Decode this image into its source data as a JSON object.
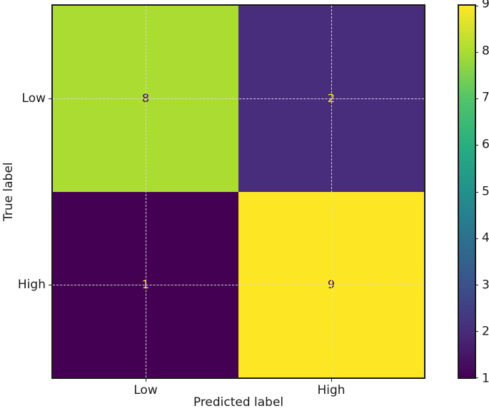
{
  "chart_data": {
    "type": "heatmap",
    "subtype": "confusion-matrix",
    "title": "",
    "xlabel": "Predicted label",
    "ylabel": "True label",
    "x_ticklabels": [
      "Low",
      "High"
    ],
    "y_ticklabels": [
      "Low",
      "High"
    ],
    "matrix": [
      [
        8,
        2
      ],
      [
        1,
        9
      ]
    ],
    "cells": [
      {
        "true_label": "Low",
        "predicted_label": "Low",
        "value": "8",
        "bg": "#aadc32",
        "fg": "#440154"
      },
      {
        "true_label": "Low",
        "predicted_label": "High",
        "value": "2",
        "bg": "#472d7b",
        "fg": "#fde725"
      },
      {
        "true_label": "High",
        "predicted_label": "Low",
        "value": "1",
        "bg": "#440154",
        "fg": "#fde725"
      },
      {
        "true_label": "High",
        "predicted_label": "High",
        "value": "9",
        "bg": "#fde725",
        "fg": "#440154"
      }
    ],
    "colormap": "viridis",
    "colorbar": {
      "min": 1,
      "max": 9,
      "ticks": [
        1,
        2,
        3,
        4,
        5,
        6,
        7,
        8,
        9
      ],
      "gradient_stops_bottom_to_top": [
        "#440154",
        "#472d7b",
        "#3b528b",
        "#2c718e",
        "#21918c",
        "#28ae80",
        "#52c569",
        "#aadc32",
        "#fde725"
      ]
    },
    "grid": "dashed lines at category centers",
    "grid_color": "#d9d9d9",
    "spine_color": "#1a1a1a",
    "background_color": "#ffffff",
    "legend_position": "none"
  }
}
